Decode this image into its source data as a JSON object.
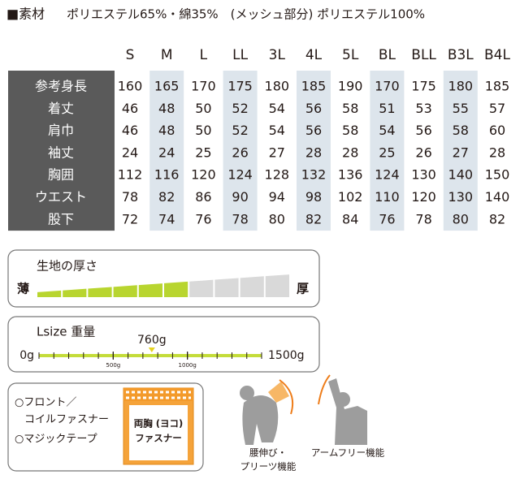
{
  "material": {
    "label": "■素材",
    "text": "ポリエステル65%・綿35%　(メッシュ部分) ポリエステル100%"
  },
  "size_table": {
    "columns": [
      "S",
      "M",
      "L",
      "LL",
      "3L",
      "4L",
      "5L",
      "BL",
      "BLL",
      "B3L",
      "B4L"
    ],
    "rows": [
      {
        "label": "参考身長",
        "values": [
          160,
          165,
          170,
          175,
          180,
          185,
          190,
          170,
          175,
          180,
          185
        ]
      },
      {
        "label": "着丈",
        "values": [
          46,
          48,
          50,
          52,
          54,
          56,
          58,
          51,
          53,
          55,
          57
        ]
      },
      {
        "label": "肩巾",
        "values": [
          46,
          48,
          50,
          52,
          54,
          56,
          58,
          54,
          56,
          58,
          60
        ]
      },
      {
        "label": "袖丈",
        "values": [
          24,
          24,
          25,
          26,
          27,
          28,
          28,
          25,
          26,
          27,
          28
        ]
      },
      {
        "label": "胸囲",
        "values": [
          112,
          116,
          120,
          124,
          128,
          132,
          136,
          124,
          130,
          140,
          150
        ]
      },
      {
        "label": "ウエスト",
        "values": [
          78,
          82,
          86,
          90,
          94,
          98,
          102,
          110,
          120,
          130,
          140
        ]
      },
      {
        "label": "股下",
        "values": [
          72,
          74,
          76,
          78,
          80,
          82,
          84,
          76,
          78,
          80,
          82
        ]
      }
    ]
  },
  "thickness": {
    "title": "生地の厚さ",
    "thin": "薄",
    "thick": "厚",
    "level": 6,
    "segments": 10
  },
  "weight": {
    "title": "Lsize 重量",
    "min": {
      "value": 0,
      "label": "0g"
    },
    "max": {
      "value": 1500,
      "label": "1500g"
    },
    "value": {
      "value": 760,
      "label": "760g"
    },
    "ticks": [
      {
        "value": 500,
        "label": "500g"
      },
      {
        "value": 1000,
        "label": "1000g"
      }
    ]
  },
  "features": {
    "closure": [
      "○フロント／",
      "コイルファスナー",
      "○マジックテープ"
    ],
    "pocket": [
      "両胸 (ヨコ)",
      "ファスナー"
    ],
    "stretch": [
      "腰伸び・",
      "プリーツ機能"
    ],
    "arm_free": "アームフリー機能"
  }
}
